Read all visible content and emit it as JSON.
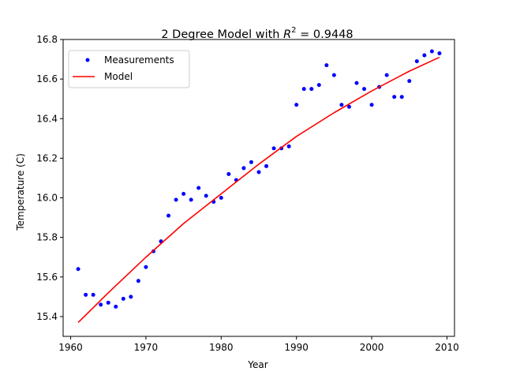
{
  "chart_data": {
    "type": "scatter",
    "title": {
      "prefix": "2 Degree Model with ",
      "symbol": "R",
      "superscript": "2",
      "suffix": " =  0.9448"
    },
    "xlabel": "Year",
    "ylabel": "Temperature (C)",
    "xlim": [
      1959,
      2011
    ],
    "ylim": [
      15.3,
      16.8
    ],
    "xticks": [
      1960,
      1970,
      1980,
      1990,
      2000,
      2010
    ],
    "yticks": [
      15.4,
      15.6,
      15.8,
      16.0,
      16.2,
      16.4,
      16.6,
      16.8
    ],
    "xtick_labels": [
      "1960",
      "1970",
      "1980",
      "1990",
      "2000",
      "2010"
    ],
    "ytick_labels": [
      "15.4",
      "15.6",
      "15.8",
      "16.0",
      "16.2",
      "16.4",
      "16.6",
      "16.8"
    ],
    "grid": false,
    "legend_position": "top-left",
    "series": [
      {
        "name": "Measurements",
        "kind": "points",
        "color": "#0000ff",
        "x": [
          1961,
          1962,
          1963,
          1964,
          1965,
          1966,
          1967,
          1968,
          1969,
          1970,
          1971,
          1972,
          1973,
          1974,
          1975,
          1976,
          1977,
          1978,
          1979,
          1980,
          1981,
          1982,
          1983,
          1984,
          1985,
          1986,
          1987,
          1988,
          1989,
          1990,
          1991,
          1992,
          1993,
          1994,
          1995,
          1996,
          1997,
          1998,
          1999,
          2000,
          2001,
          2002,
          2003,
          2004,
          2005,
          2006,
          2007,
          2008,
          2009
        ],
        "y": [
          15.64,
          15.51,
          15.51,
          15.46,
          15.47,
          15.45,
          15.49,
          15.5,
          15.58,
          15.65,
          15.73,
          15.78,
          15.91,
          15.99,
          16.02,
          15.99,
          16.05,
          16.01,
          15.98,
          16.0,
          16.12,
          16.09,
          16.15,
          16.18,
          16.13,
          16.16,
          16.25,
          16.25,
          16.26,
          16.47,
          16.55,
          16.55,
          16.57,
          16.67,
          16.62,
          16.47,
          16.46,
          16.58,
          16.55,
          16.47,
          16.56,
          16.62,
          16.51,
          16.51,
          16.59,
          16.69,
          16.72,
          16.74,
          16.73
        ]
      },
      {
        "name": "Model",
        "kind": "line",
        "color": "#ff0000",
        "x": [
          1961,
          1965,
          1970,
          1975,
          1980,
          1985,
          1990,
          1995,
          2000,
          2005,
          2009
        ],
        "y": [
          15.37,
          15.52,
          15.7,
          15.87,
          16.02,
          16.17,
          16.31,
          16.43,
          16.54,
          16.64,
          16.71
        ]
      }
    ]
  }
}
